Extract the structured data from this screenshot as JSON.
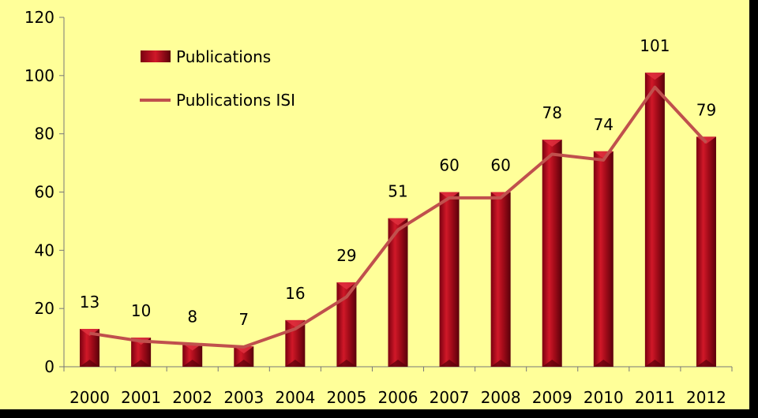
{
  "chart_data": {
    "type": "bar",
    "title": "",
    "xlabel": "",
    "ylabel": "",
    "categories": [
      "2000",
      "2001",
      "2002",
      "2003",
      "2004",
      "2005",
      "2006",
      "2007",
      "2008",
      "2009",
      "2010",
      "2011",
      "2012"
    ],
    "ylim": [
      0,
      120
    ],
    "yticks": [
      0,
      20,
      40,
      60,
      80,
      100,
      120
    ],
    "grid": false,
    "legend_position": "top-left",
    "series": [
      {
        "name": "Publications",
        "type": "bar",
        "color": "#b0101e",
        "values": [
          13,
          10,
          8,
          7,
          16,
          29,
          51,
          60,
          60,
          78,
          74,
          101,
          79
        ]
      },
      {
        "name": "Publications ISI",
        "type": "line",
        "color": "#c0504d",
        "values": [
          11.5,
          8.8,
          7.8,
          6.8,
          13,
          24,
          47,
          58,
          58,
          73,
          71,
          96,
          77
        ]
      }
    ],
    "data_labels": [
      "13",
      "10",
      "8",
      "7",
      "16",
      "29",
      "51",
      "60",
      "60",
      "78",
      "74",
      "101",
      "79"
    ]
  },
  "colors": {
    "plot_background": "#ffff99",
    "bar_fill": "#b0101e",
    "line": "#c0504d"
  }
}
